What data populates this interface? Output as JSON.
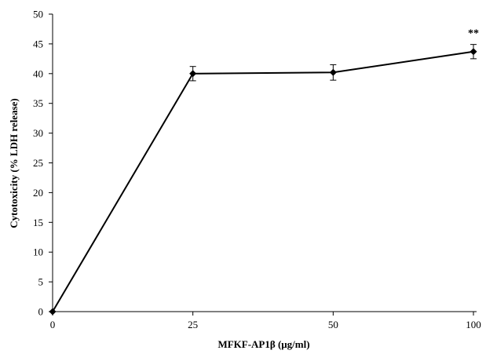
{
  "chart_data": {
    "type": "line",
    "title": "",
    "xlabel": "MFKF-AP1β (μg/ml)",
    "ylabel": "Cytotoxicity  (% LDH release)",
    "x_categories": [
      "0",
      "25",
      "50",
      "100"
    ],
    "y_ticks": [
      "0",
      "5",
      "10",
      "15",
      "20",
      "25",
      "30",
      "35",
      "40",
      "45",
      "50"
    ],
    "ylim": [
      0,
      50
    ],
    "grid": false,
    "legend": "none",
    "series": [
      {
        "values": [
          0,
          40.0,
          40.2,
          43.7
        ],
        "errors": [
          0,
          1.2,
          1.3,
          1.2
        ],
        "color": "#000000",
        "marker": "diamond"
      }
    ],
    "annotations": [
      {
        "category": "100",
        "text": "**"
      }
    ]
  }
}
